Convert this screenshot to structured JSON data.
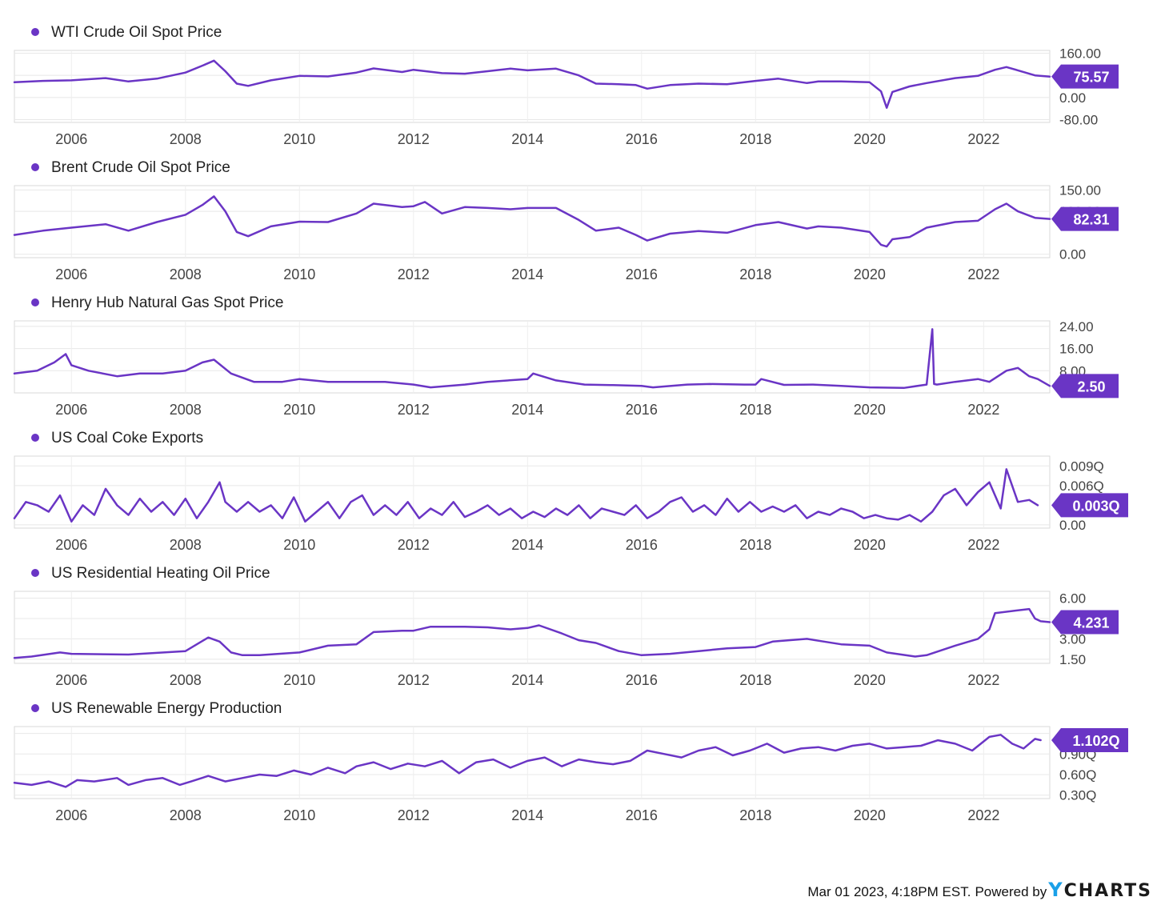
{
  "accent_color": "#6a35c5",
  "chart_data": [
    {
      "type": "line",
      "title": "WTI Crude Oil Spot Price",
      "last_value_label": "75.57",
      "last_value": 75.57,
      "y_ticks": [
        160,
        80,
        0,
        -80
      ],
      "y_tick_labels": [
        "160.00",
        "80.00",
        "0.00",
        "-80.00"
      ],
      "ylim": [
        -90,
        170
      ],
      "xlim": [
        2005.0,
        2023.16
      ],
      "x_tick_labels": [
        "2006",
        "2008",
        "2010",
        "2012",
        "2014",
        "2016",
        "2018",
        "2020",
        "2022"
      ],
      "grid": true,
      "series": [
        {
          "x": [
            2005.0,
            2005.5,
            2006.0,
            2006.6,
            2007.0,
            2007.5,
            2008.0,
            2008.3,
            2008.5,
            2008.7,
            2008.9,
            2009.1,
            2009.5,
            2010.0,
            2010.5,
            2011.0,
            2011.3,
            2011.8,
            2012.0,
            2012.5,
            2012.9,
            2013.3,
            2013.7,
            2014.0,
            2014.5,
            2014.9,
            2015.2,
            2015.6,
            2015.9,
            2016.1,
            2016.5,
            2017.0,
            2017.5,
            2018.0,
            2018.4,
            2018.9,
            2019.1,
            2019.5,
            2020.0,
            2020.2,
            2020.3,
            2020.4,
            2020.7,
            2021.0,
            2021.5,
            2021.9,
            2022.2,
            2022.4,
            2022.6,
            2022.9,
            2023.16
          ],
          "values": [
            55,
            60,
            62,
            70,
            58,
            68,
            90,
            115,
            133,
            95,
            50,
            42,
            62,
            78,
            76,
            90,
            105,
            92,
            100,
            88,
            86,
            95,
            104,
            98,
            104,
            80,
            50,
            48,
            45,
            32,
            45,
            50,
            48,
            60,
            68,
            52,
            58,
            58,
            55,
            22,
            -37,
            20,
            40,
            52,
            70,
            78,
            100,
            110,
            98,
            80,
            75.57
          ]
        }
      ]
    },
    {
      "type": "line",
      "title": "Brent Crude Oil Spot Price",
      "last_value_label": "82.31",
      "last_value": 82.31,
      "y_ticks": [
        150,
        100,
        0
      ],
      "y_tick_labels": [
        "150.00",
        "100.00",
        "0.00"
      ],
      "ylim": [
        -8,
        160
      ],
      "xlim": [
        2005.0,
        2023.16
      ],
      "x_tick_labels": [
        "2006",
        "2008",
        "2010",
        "2012",
        "2014",
        "2016",
        "2018",
        "2020",
        "2022"
      ],
      "grid": true,
      "series": [
        {
          "x": [
            2005.0,
            2005.5,
            2006.0,
            2006.6,
            2007.0,
            2007.5,
            2008.0,
            2008.3,
            2008.5,
            2008.7,
            2008.9,
            2009.1,
            2009.5,
            2010.0,
            2010.5,
            2011.0,
            2011.3,
            2011.8,
            2012.0,
            2012.2,
            2012.5,
            2012.9,
            2013.3,
            2013.7,
            2014.0,
            2014.5,
            2014.9,
            2015.2,
            2015.6,
            2015.9,
            2016.1,
            2016.5,
            2017.0,
            2017.5,
            2018.0,
            2018.4,
            2018.9,
            2019.1,
            2019.5,
            2020.0,
            2020.2,
            2020.3,
            2020.4,
            2020.7,
            2021.0,
            2021.5,
            2021.9,
            2022.2,
            2022.4,
            2022.6,
            2022.9,
            2023.16
          ],
          "values": [
            45,
            55,
            62,
            70,
            55,
            75,
            92,
            115,
            135,
            100,
            52,
            42,
            65,
            76,
            75,
            95,
            118,
            110,
            112,
            122,
            95,
            110,
            108,
            105,
            108,
            108,
            80,
            55,
            62,
            45,
            32,
            48,
            54,
            50,
            68,
            75,
            60,
            65,
            62,
            52,
            22,
            18,
            35,
            40,
            62,
            75,
            78,
            105,
            118,
            100,
            85,
            82.31
          ]
        }
      ]
    },
    {
      "type": "line",
      "title": "Henry Hub Natural Gas Spot Price",
      "last_value_label": "2.50",
      "last_value": 2.5,
      "y_ticks": [
        24,
        16,
        8
      ],
      "y_tick_labels": [
        "24.00",
        "16.00",
        "8.00"
      ],
      "ylim": [
        0,
        26
      ],
      "xlim": [
        2005.0,
        2023.16
      ],
      "x_tick_labels": [
        "2006",
        "2008",
        "2010",
        "2012",
        "2014",
        "2016",
        "2018",
        "2020",
        "2022"
      ],
      "grid": true,
      "series": [
        {
          "x": [
            2005.0,
            2005.4,
            2005.7,
            2005.9,
            2006.0,
            2006.3,
            2006.8,
            2007.2,
            2007.6,
            2008.0,
            2008.3,
            2008.5,
            2008.8,
            2009.2,
            2009.7,
            2010.0,
            2010.5,
            2011.0,
            2011.5,
            2012.0,
            2012.3,
            2012.9,
            2013.3,
            2014.0,
            2014.1,
            2014.5,
            2015.0,
            2015.5,
            2016.0,
            2016.2,
            2016.8,
            2017.2,
            2017.8,
            2018.0,
            2018.1,
            2018.5,
            2019.0,
            2019.5,
            2020.0,
            2020.6,
            2021.0,
            2021.1,
            2021.13,
            2021.18,
            2021.5,
            2021.9,
            2022.1,
            2022.4,
            2022.6,
            2022.8,
            2022.95,
            2023.16
          ],
          "values": [
            7,
            8,
            11,
            14,
            10,
            8,
            6,
            7,
            7,
            8,
            11,
            12,
            7,
            4,
            4,
            5,
            4,
            4,
            4,
            3,
            2,
            3,
            4,
            5,
            7,
            4.5,
            3,
            2.8,
            2.5,
            2,
            3,
            3.2,
            3,
            3,
            5,
            2.9,
            3,
            2.5,
            2,
            1.8,
            3,
            23,
            3.2,
            3,
            4,
            5,
            4,
            8,
            9,
            6,
            5,
            2.5
          ]
        }
      ]
    },
    {
      "type": "line",
      "title": "US Coal Coke Exports",
      "last_value_label": "0.003Q",
      "last_value": 0.003,
      "y_ticks": [
        0.009,
        0.006,
        0.0
      ],
      "y_tick_labels": [
        "0.009Q",
        "0.006Q",
        "0.00"
      ],
      "ylim": [
        -0.0005,
        0.0105
      ],
      "xlim": [
        2005.0,
        2023.16
      ],
      "x_tick_labels": [
        "2006",
        "2008",
        "2010",
        "2012",
        "2014",
        "2016",
        "2018",
        "2020",
        "2022"
      ],
      "grid": true,
      "series": [
        {
          "x": [
            2005.0,
            2005.2,
            2005.4,
            2005.6,
            2005.8,
            2006.0,
            2006.2,
            2006.4,
            2006.6,
            2006.8,
            2007.0,
            2007.2,
            2007.4,
            2007.6,
            2007.8,
            2008.0,
            2008.2,
            2008.4,
            2008.6,
            2008.7,
            2008.9,
            2009.1,
            2009.3,
            2009.5,
            2009.7,
            2009.9,
            2010.1,
            2010.3,
            2010.5,
            2010.7,
            2010.9,
            2011.1,
            2011.3,
            2011.5,
            2011.7,
            2011.9,
            2012.1,
            2012.3,
            2012.5,
            2012.7,
            2012.9,
            2013.1,
            2013.3,
            2013.5,
            2013.7,
            2013.9,
            2014.1,
            2014.3,
            2014.5,
            2014.7,
            2014.9,
            2015.1,
            2015.3,
            2015.5,
            2015.7,
            2015.9,
            2016.1,
            2016.3,
            2016.5,
            2016.7,
            2016.9,
            2017.1,
            2017.3,
            2017.5,
            2017.7,
            2017.9,
            2018.1,
            2018.3,
            2018.5,
            2018.7,
            2018.9,
            2019.1,
            2019.3,
            2019.5,
            2019.7,
            2019.9,
            2020.1,
            2020.3,
            2020.5,
            2020.7,
            2020.9,
            2021.1,
            2021.3,
            2021.5,
            2021.7,
            2021.9,
            2022.1,
            2022.3,
            2022.4,
            2022.6,
            2022.8,
            2022.95
          ],
          "values": [
            0.001,
            0.0035,
            0.003,
            0.002,
            0.0045,
            0.0005,
            0.003,
            0.0015,
            0.0055,
            0.003,
            0.0015,
            0.004,
            0.002,
            0.0035,
            0.0015,
            0.004,
            0.001,
            0.0035,
            0.0065,
            0.0035,
            0.002,
            0.0035,
            0.002,
            0.003,
            0.001,
            0.0042,
            0.0005,
            0.002,
            0.0035,
            0.001,
            0.0035,
            0.0045,
            0.0015,
            0.003,
            0.0015,
            0.0035,
            0.001,
            0.0025,
            0.0015,
            0.0035,
            0.0012,
            0.002,
            0.003,
            0.0015,
            0.0025,
            0.001,
            0.002,
            0.0012,
            0.0025,
            0.0015,
            0.003,
            0.001,
            0.0025,
            0.002,
            0.0015,
            0.003,
            0.001,
            0.002,
            0.0035,
            0.0042,
            0.002,
            0.003,
            0.0015,
            0.004,
            0.002,
            0.0035,
            0.002,
            0.0028,
            0.002,
            0.003,
            0.001,
            0.002,
            0.0015,
            0.0025,
            0.002,
            0.001,
            0.0015,
            0.001,
            0.0008,
            0.0015,
            0.0005,
            0.002,
            0.0045,
            0.0055,
            0.003,
            0.005,
            0.0065,
            0.0025,
            0.0085,
            0.0035,
            0.0038,
            0.003
          ]
        }
      ]
    },
    {
      "type": "line",
      "title": "US Residential Heating Oil Price",
      "last_value_label": "4.231",
      "last_value": 4.231,
      "y_ticks": [
        6.0,
        4.5,
        3.0,
        1.5
      ],
      "y_tick_labels": [
        "6.00",
        "4.50",
        "3.00",
        "1.50"
      ],
      "ylim": [
        1.2,
        6.5
      ],
      "xlim": [
        2005.0,
        2023.16
      ],
      "x_tick_labels": [
        "2006",
        "2008",
        "2010",
        "2012",
        "2014",
        "2016",
        "2018",
        "2020",
        "2022"
      ],
      "grid": true,
      "series": [
        {
          "x": [
            2005.0,
            2005.3,
            2005.8,
            2006.0,
            2007.0,
            2008.0,
            2008.2,
            2008.4,
            2008.6,
            2008.8,
            2009.0,
            2009.3,
            2010.0,
            2010.5,
            2011.0,
            2011.3,
            2011.8,
            2012.0,
            2012.3,
            2012.9,
            2013.3,
            2013.7,
            2014.0,
            2014.2,
            2014.6,
            2014.9,
            2015.2,
            2015.6,
            2016.0,
            2016.5,
            2017.0,
            2017.5,
            2018.0,
            2018.3,
            2018.9,
            2019.2,
            2019.5,
            2020.0,
            2020.3,
            2020.8,
            2021.0,
            2021.5,
            2021.9,
            2022.1,
            2022.2,
            2022.8,
            2022.9,
            2023.0,
            2023.16
          ],
          "values": [
            1.6,
            1.7,
            2.0,
            1.9,
            1.85,
            2.1,
            2.6,
            3.1,
            2.8,
            2.0,
            1.8,
            1.8,
            2.0,
            2.5,
            2.6,
            3.5,
            3.6,
            3.6,
            3.9,
            3.9,
            3.85,
            3.7,
            3.8,
            4.0,
            3.4,
            2.9,
            2.7,
            2.1,
            1.8,
            1.9,
            2.1,
            2.3,
            2.4,
            2.8,
            3.0,
            2.8,
            2.6,
            2.5,
            2.0,
            1.7,
            1.8,
            2.5,
            3.0,
            3.7,
            4.9,
            5.2,
            4.5,
            4.3,
            4.231
          ]
        }
      ]
    },
    {
      "type": "line",
      "title": "US Renewable Energy Production",
      "last_value_label": "1.102Q",
      "last_value": 1.102,
      "y_ticks": [
        1.2,
        0.9,
        0.6,
        0.3
      ],
      "y_tick_labels": [
        "1.20Q",
        "0.90Q",
        "0.60Q",
        "0.30Q"
      ],
      "ylim": [
        0.25,
        1.3
      ],
      "xlim": [
        2005.0,
        2023.16
      ],
      "x_tick_labels": [
        "2006",
        "2008",
        "2010",
        "2012",
        "2014",
        "2016",
        "2018",
        "2020",
        "2022"
      ],
      "grid": true,
      "series": [
        {
          "x": [
            2005.0,
            2005.3,
            2005.6,
            2005.9,
            2006.1,
            2006.4,
            2006.8,
            2007.0,
            2007.3,
            2007.6,
            2007.9,
            2008.1,
            2008.4,
            2008.7,
            2009.0,
            2009.3,
            2009.6,
            2009.9,
            2010.2,
            2010.5,
            2010.8,
            2011.0,
            2011.3,
            2011.6,
            2011.9,
            2012.2,
            2012.5,
            2012.8,
            2013.1,
            2013.4,
            2013.7,
            2014.0,
            2014.3,
            2014.6,
            2014.9,
            2015.2,
            2015.5,
            2015.8,
            2016.1,
            2016.4,
            2016.7,
            2017.0,
            2017.3,
            2017.6,
            2017.9,
            2018.2,
            2018.5,
            2018.8,
            2019.1,
            2019.4,
            2019.7,
            2020.0,
            2020.3,
            2020.6,
            2020.9,
            2021.2,
            2021.5,
            2021.8,
            2022.1,
            2022.3,
            2022.5,
            2022.7,
            2022.9,
            2023.0
          ],
          "values": [
            0.48,
            0.45,
            0.5,
            0.42,
            0.52,
            0.5,
            0.55,
            0.45,
            0.52,
            0.55,
            0.45,
            0.5,
            0.58,
            0.5,
            0.55,
            0.6,
            0.58,
            0.66,
            0.6,
            0.7,
            0.62,
            0.72,
            0.78,
            0.68,
            0.76,
            0.72,
            0.8,
            0.62,
            0.78,
            0.82,
            0.7,
            0.8,
            0.85,
            0.72,
            0.82,
            0.78,
            0.75,
            0.8,
            0.95,
            0.9,
            0.85,
            0.95,
            1.0,
            0.88,
            0.95,
            1.05,
            0.92,
            0.98,
            1.0,
            0.95,
            1.02,
            1.05,
            0.98,
            1.0,
            1.02,
            1.1,
            1.05,
            0.95,
            1.15,
            1.18,
            1.05,
            0.98,
            1.12,
            1.102
          ]
        }
      ]
    }
  ],
  "footer": {
    "timestamp": "Mar 01 2023, 4:18PM EST.",
    "powered_by": "Powered by",
    "brand_y": "Y",
    "brand_rest": "CHARTS"
  }
}
